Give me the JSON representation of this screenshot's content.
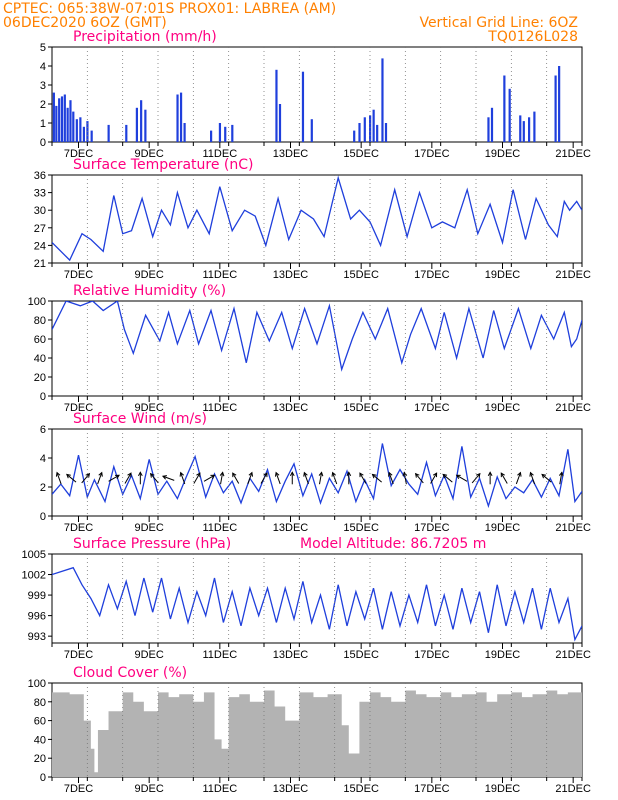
{
  "header": {
    "line1_left": "CPTEC:   065:38W-07:01S   PROX01: LABREA (AM)",
    "line2_left": "06DEC2020 6OZ (GMT)",
    "line1_right": "Vertical Grid Line: 6OZ",
    "line2_right": "TQ0126L028"
  },
  "colors": {
    "header": "#ff8000",
    "title": "#ff0080",
    "line": "#1f3fdc",
    "bar": "#1f3fdc",
    "cloud": "#b3b3b3",
    "arrow": "#000000",
    "grid": "#777777"
  },
  "x_dates": [
    "7DEC",
    "9DEC",
    "11DEC",
    "13DEC",
    "15DEC",
    "17DEC",
    "19DEC",
    "21DEC"
  ],
  "chart_data": [
    {
      "type": "bar",
      "title": "Precipitation (mm/h)",
      "ylim": [
        0,
        5
      ],
      "yticks": [
        0,
        1,
        2,
        3,
        4,
        5
      ],
      "x_unit": "day offset from 06DEC2020 06Z",
      "events": [
        {
          "t": 0.05,
          "v": 2.6
        },
        {
          "t": 0.12,
          "v": 1.9
        },
        {
          "t": 0.2,
          "v": 2.3
        },
        {
          "t": 0.28,
          "v": 2.4
        },
        {
          "t": 0.36,
          "v": 2.5
        },
        {
          "t": 0.44,
          "v": 1.8
        },
        {
          "t": 0.52,
          "v": 2.2
        },
        {
          "t": 0.6,
          "v": 1.6
        },
        {
          "t": 0.7,
          "v": 1.2
        },
        {
          "t": 0.8,
          "v": 1.3
        },
        {
          "t": 0.9,
          "v": 0.8
        },
        {
          "t": 1.0,
          "v": 1.1
        },
        {
          "t": 1.12,
          "v": 0.6
        },
        {
          "t": 1.6,
          "v": 0.9
        },
        {
          "t": 2.1,
          "v": 0.9
        },
        {
          "t": 2.4,
          "v": 1.8
        },
        {
          "t": 2.52,
          "v": 2.2
        },
        {
          "t": 2.64,
          "v": 1.7
        },
        {
          "t": 3.55,
          "v": 2.5
        },
        {
          "t": 3.65,
          "v": 2.6
        },
        {
          "t": 3.75,
          "v": 1.0
        },
        {
          "t": 4.5,
          "v": 0.6
        },
        {
          "t": 4.75,
          "v": 1.0
        },
        {
          "t": 4.9,
          "v": 0.8
        },
        {
          "t": 5.1,
          "v": 0.9
        },
        {
          "t": 6.35,
          "v": 3.8
        },
        {
          "t": 6.45,
          "v": 2.0
        },
        {
          "t": 7.1,
          "v": 3.7
        },
        {
          "t": 7.35,
          "v": 1.2
        },
        {
          "t": 8.55,
          "v": 0.6
        },
        {
          "t": 8.7,
          "v": 1.0
        },
        {
          "t": 8.85,
          "v": 1.3
        },
        {
          "t": 9.0,
          "v": 1.4
        },
        {
          "t": 9.1,
          "v": 1.7
        },
        {
          "t": 9.2,
          "v": 0.9
        },
        {
          "t": 9.35,
          "v": 4.4
        },
        {
          "t": 9.45,
          "v": 1.0
        },
        {
          "t": 12.35,
          "v": 1.3
        },
        {
          "t": 12.45,
          "v": 1.8
        },
        {
          "t": 12.8,
          "v": 3.5
        },
        {
          "t": 12.95,
          "v": 2.8
        },
        {
          "t": 13.25,
          "v": 1.4
        },
        {
          "t": 13.35,
          "v": 1.1
        },
        {
          "t": 13.5,
          "v": 1.3
        },
        {
          "t": 13.65,
          "v": 1.6
        },
        {
          "t": 14.25,
          "v": 3.5
        },
        {
          "t": 14.35,
          "v": 4.0
        }
      ]
    },
    {
      "type": "line",
      "title": "Surface Temperature (nC)",
      "ylim": [
        21,
        36
      ],
      "yticks": [
        21,
        24,
        27,
        30,
        33,
        36
      ],
      "x": [
        0,
        0.5,
        0.85,
        1.1,
        1.45,
        1.75,
        2.0,
        2.25,
        2.55,
        2.85,
        3.1,
        3.35,
        3.55,
        3.85,
        4.1,
        4.45,
        4.75,
        5.1,
        5.45,
        5.75,
        6.05,
        6.4,
        6.7,
        7.05,
        7.4,
        7.7,
        8.1,
        8.45,
        8.7,
        9.0,
        9.3,
        9.7,
        10.05,
        10.4,
        10.75,
        11.05,
        11.4,
        11.75,
        12.05,
        12.4,
        12.75,
        13.05,
        13.4,
        13.7,
        14.05,
        14.3,
        14.5,
        14.65,
        14.85,
        15.0
      ],
      "y": [
        24.5,
        21.5,
        26.0,
        25.0,
        23.0,
        32.5,
        26.0,
        26.5,
        32.0,
        25.5,
        30.0,
        27.5,
        33.0,
        27.0,
        30.0,
        26.0,
        34.0,
        26.5,
        30.0,
        29.0,
        24.0,
        32.0,
        25.0,
        30.0,
        28.5,
        25.5,
        35.5,
        28.5,
        30.0,
        28.0,
        24.0,
        33.5,
        25.5,
        33.0,
        27.0,
        28.0,
        27.0,
        33.5,
        26.0,
        31.0,
        24.5,
        33.5,
        25.0,
        32.0,
        27.5,
        25.5,
        31.5,
        30.0,
        31.5,
        30.0
      ]
    },
    {
      "type": "line",
      "title": "Relative Humidity (%)",
      "ylim": [
        0,
        100
      ],
      "yticks": [
        0,
        20,
        40,
        60,
        80,
        100
      ],
      "x": [
        0,
        0.4,
        0.8,
        1.15,
        1.45,
        1.85,
        2.05,
        2.3,
        2.65,
        3.05,
        3.3,
        3.55,
        3.9,
        4.15,
        4.5,
        4.8,
        5.15,
        5.5,
        5.8,
        6.15,
        6.5,
        6.8,
        7.15,
        7.5,
        7.85,
        8.2,
        8.5,
        8.8,
        9.15,
        9.5,
        9.9,
        10.15,
        10.45,
        10.85,
        11.1,
        11.45,
        11.8,
        12.2,
        12.5,
        12.8,
        13.2,
        13.55,
        13.85,
        14.2,
        14.5,
        14.7,
        14.85,
        15.0
      ],
      "y": [
        70,
        100,
        95,
        100,
        90,
        100,
        70,
        45,
        85,
        58,
        88,
        55,
        90,
        55,
        90,
        48,
        92,
        35,
        88,
        58,
        88,
        50,
        92,
        55,
        95,
        28,
        60,
        88,
        60,
        92,
        35,
        65,
        92,
        50,
        88,
        40,
        92,
        40,
        90,
        50,
        92,
        50,
        85,
        60,
        88,
        52,
        60,
        80
      ]
    },
    {
      "type": "line",
      "title": "Surface Wind (m/s)",
      "ylim": [
        0,
        6
      ],
      "yticks": [
        0,
        2,
        4,
        6
      ],
      "x": [
        0,
        0.25,
        0.5,
        0.75,
        1.0,
        1.2,
        1.5,
        1.75,
        2.0,
        2.25,
        2.5,
        2.75,
        3.0,
        3.25,
        3.55,
        3.8,
        4.05,
        4.35,
        4.6,
        4.85,
        5.1,
        5.35,
        5.6,
        5.85,
        6.1,
        6.35,
        6.6,
        6.85,
        7.1,
        7.35,
        7.6,
        7.85,
        8.1,
        8.35,
        8.6,
        8.85,
        9.1,
        9.35,
        9.6,
        9.85,
        10.1,
        10.35,
        10.6,
        10.85,
        11.1,
        11.35,
        11.6,
        11.85,
        12.1,
        12.35,
        12.6,
        12.85,
        13.1,
        13.35,
        13.6,
        13.85,
        14.1,
        14.35,
        14.6,
        14.8,
        15.0
      ],
      "y": [
        1.5,
        2.2,
        1.4,
        4.2,
        1.3,
        2.5,
        1.0,
        3.4,
        1.5,
        2.8,
        1.2,
        3.9,
        1.5,
        2.4,
        1.2,
        2.7,
        4.1,
        1.3,
        2.9,
        1.6,
        2.4,
        0.9,
        2.6,
        1.7,
        3.2,
        1.0,
        2.4,
        3.6,
        1.4,
        2.9,
        0.9,
        2.6,
        1.6,
        3.1,
        1.0,
        2.5,
        1.2,
        5.0,
        2.1,
        3.2,
        2.2,
        1.5,
        3.7,
        1.4,
        2.8,
        1.2,
        4.8,
        1.3,
        2.6,
        0.7,
        2.7,
        1.2,
        2.0,
        1.6,
        2.5,
        1.3,
        2.6,
        1.4,
        4.6,
        1.0,
        1.7
      ]
    },
    {
      "type": "line",
      "title": "Surface Pressure (hPa)",
      "annotation": "Model Altitude: 86.7205 m",
      "ylim": [
        992,
        1005
      ],
      "yticks": [
        993,
        996,
        999,
        1002,
        1005
      ],
      "x": [
        0,
        0.3,
        0.6,
        0.85,
        1.1,
        1.35,
        1.6,
        1.85,
        2.1,
        2.35,
        2.6,
        2.85,
        3.1,
        3.35,
        3.6,
        3.85,
        4.1,
        4.35,
        4.6,
        4.85,
        5.1,
        5.35,
        5.6,
        5.85,
        6.1,
        6.35,
        6.6,
        6.85,
        7.1,
        7.35,
        7.6,
        7.85,
        8.1,
        8.35,
        8.6,
        8.85,
        9.1,
        9.35,
        9.6,
        9.85,
        10.1,
        10.35,
        10.6,
        10.85,
        11.1,
        11.35,
        11.6,
        11.85,
        12.1,
        12.35,
        12.6,
        12.85,
        13.1,
        13.35,
        13.6,
        13.85,
        14.1,
        14.35,
        14.6,
        14.8,
        15.0
      ],
      "y": [
        1002.0,
        1002.5,
        1003.0,
        1000.5,
        998.5,
        996.0,
        1000.5,
        997.0,
        1001.0,
        996.0,
        1001.5,
        996.5,
        1001.5,
        995.5,
        1000.0,
        995.0,
        999.5,
        996.0,
        1001.5,
        995.0,
        999.5,
        994.5,
        1000.0,
        996.0,
        1000.0,
        995.0,
        1000.0,
        995.5,
        1001.0,
        995.0,
        999.0,
        994.0,
        1000.5,
        994.5,
        999.5,
        995.5,
        1000.0,
        994.0,
        999.5,
        994.5,
        999.0,
        995.0,
        1000.5,
        994.5,
        999.0,
        994.0,
        1000.0,
        995.0,
        999.5,
        993.5,
        1000.5,
        994.5,
        999.5,
        995.0,
        1000.0,
        994.0,
        1000.0,
        995.0,
        998.5,
        992.5,
        994.5
      ]
    },
    {
      "type": "bar",
      "title": "Cloud Cover (%)",
      "ylim": [
        0,
        100
      ],
      "yticks": [
        0,
        20,
        40,
        60,
        80,
        100
      ],
      "x": [
        0,
        0.5,
        0.9,
        1.1,
        1.2,
        1.3,
        1.6,
        2.0,
        2.3,
        2.6,
        3.0,
        3.3,
        3.6,
        4.0,
        4.3,
        4.6,
        4.8,
        5.0,
        5.3,
        5.6,
        6.0,
        6.3,
        6.6,
        7.0,
        7.4,
        7.8,
        8.2,
        8.4,
        8.7,
        9.0,
        9.3,
        9.6,
        10.0,
        10.3,
        10.6,
        11.0,
        11.3,
        11.6,
        12.0,
        12.3,
        12.6,
        13.0,
        13.3,
        13.6,
        14.0,
        14.3,
        14.6,
        15.0
      ],
      "values": [
        90,
        88,
        60,
        30,
        5,
        50,
        70,
        90,
        80,
        70,
        90,
        85,
        88,
        80,
        90,
        40,
        30,
        85,
        88,
        80,
        92,
        75,
        60,
        90,
        85,
        88,
        55,
        25,
        80,
        90,
        85,
        80,
        92,
        88,
        85,
        90,
        85,
        88,
        90,
        80,
        88,
        90,
        85,
        88,
        92,
        88,
        90,
        88
      ]
    }
  ],
  "wind_arrows": {
    "x": [
      0.2,
      0.55,
      0.95,
      1.35,
      1.75,
      2.15,
      2.5,
      2.9,
      3.3,
      3.7,
      4.1,
      4.45,
      4.8,
      5.2,
      5.6,
      6.0,
      6.4,
      6.8,
      7.2,
      7.6,
      8.0,
      8.4,
      8.8,
      9.2,
      9.6,
      10.0,
      10.4,
      10.8,
      11.2,
      11.6,
      12.0,
      12.4,
      12.8,
      13.2,
      13.6,
      14.0,
      14.4
    ],
    "dir_deg": [
      200,
      230,
      140,
      160,
      120,
      150,
      180,
      220,
      250,
      200,
      150,
      120,
      170,
      210,
      160,
      150,
      200,
      180,
      200,
      170,
      200,
      180,
      210,
      230,
      200,
      190,
      220,
      150,
      230,
      240,
      140,
      180,
      210,
      160,
      200,
      230,
      170
    ],
    "speed": [
      2.0,
      1.6,
      2.6,
      1.8,
      2.3,
      1.5,
      1.7,
      2.4,
      2.0,
      1.8,
      2.5,
      2.2,
      1.7,
      1.9,
      2.5,
      1.8,
      2.2,
      2.6,
      2.0,
      1.6,
      2.0,
      2.4,
      1.8,
      2.0,
      2.4,
      2.2,
      1.8,
      2.6,
      2.0,
      2.2,
      1.8,
      2.3,
      2.5,
      2.0,
      2.0,
      1.8,
      1.6
    ]
  }
}
